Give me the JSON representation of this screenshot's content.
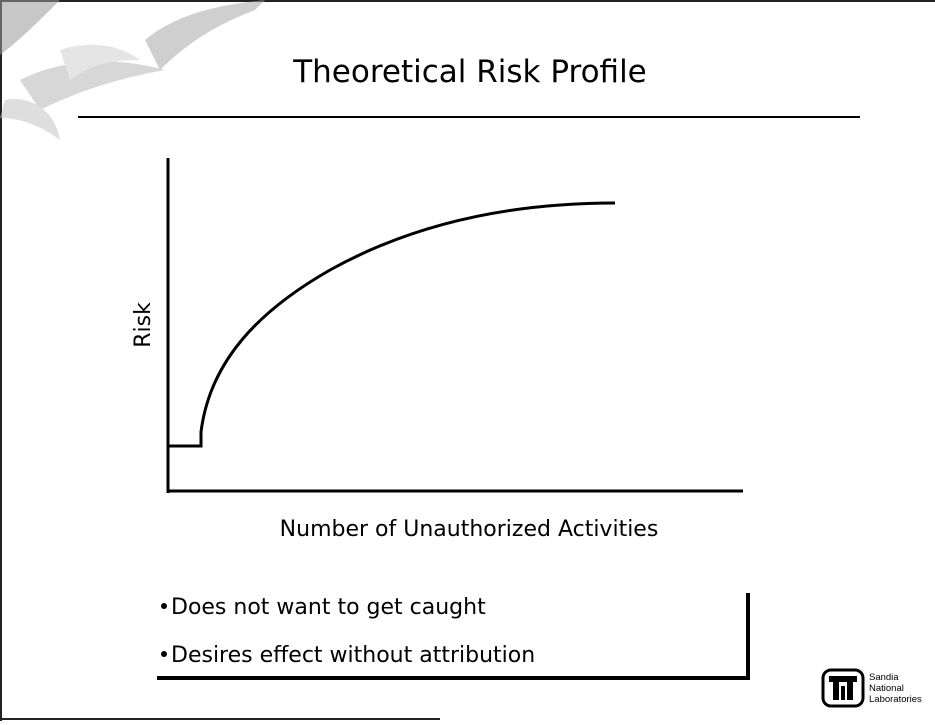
{
  "header": {
    "title": "Theoretical Risk Profile"
  },
  "figure": {
    "y_label": "Risk",
    "x_label": "Number of Unauthorized Activities"
  },
  "bullets": [
    "Does not want to get caught",
    "Desires effect without attribution"
  ],
  "logo": {
    "lines": [
      "Sandia",
      "National",
      "Laboratories"
    ]
  }
}
